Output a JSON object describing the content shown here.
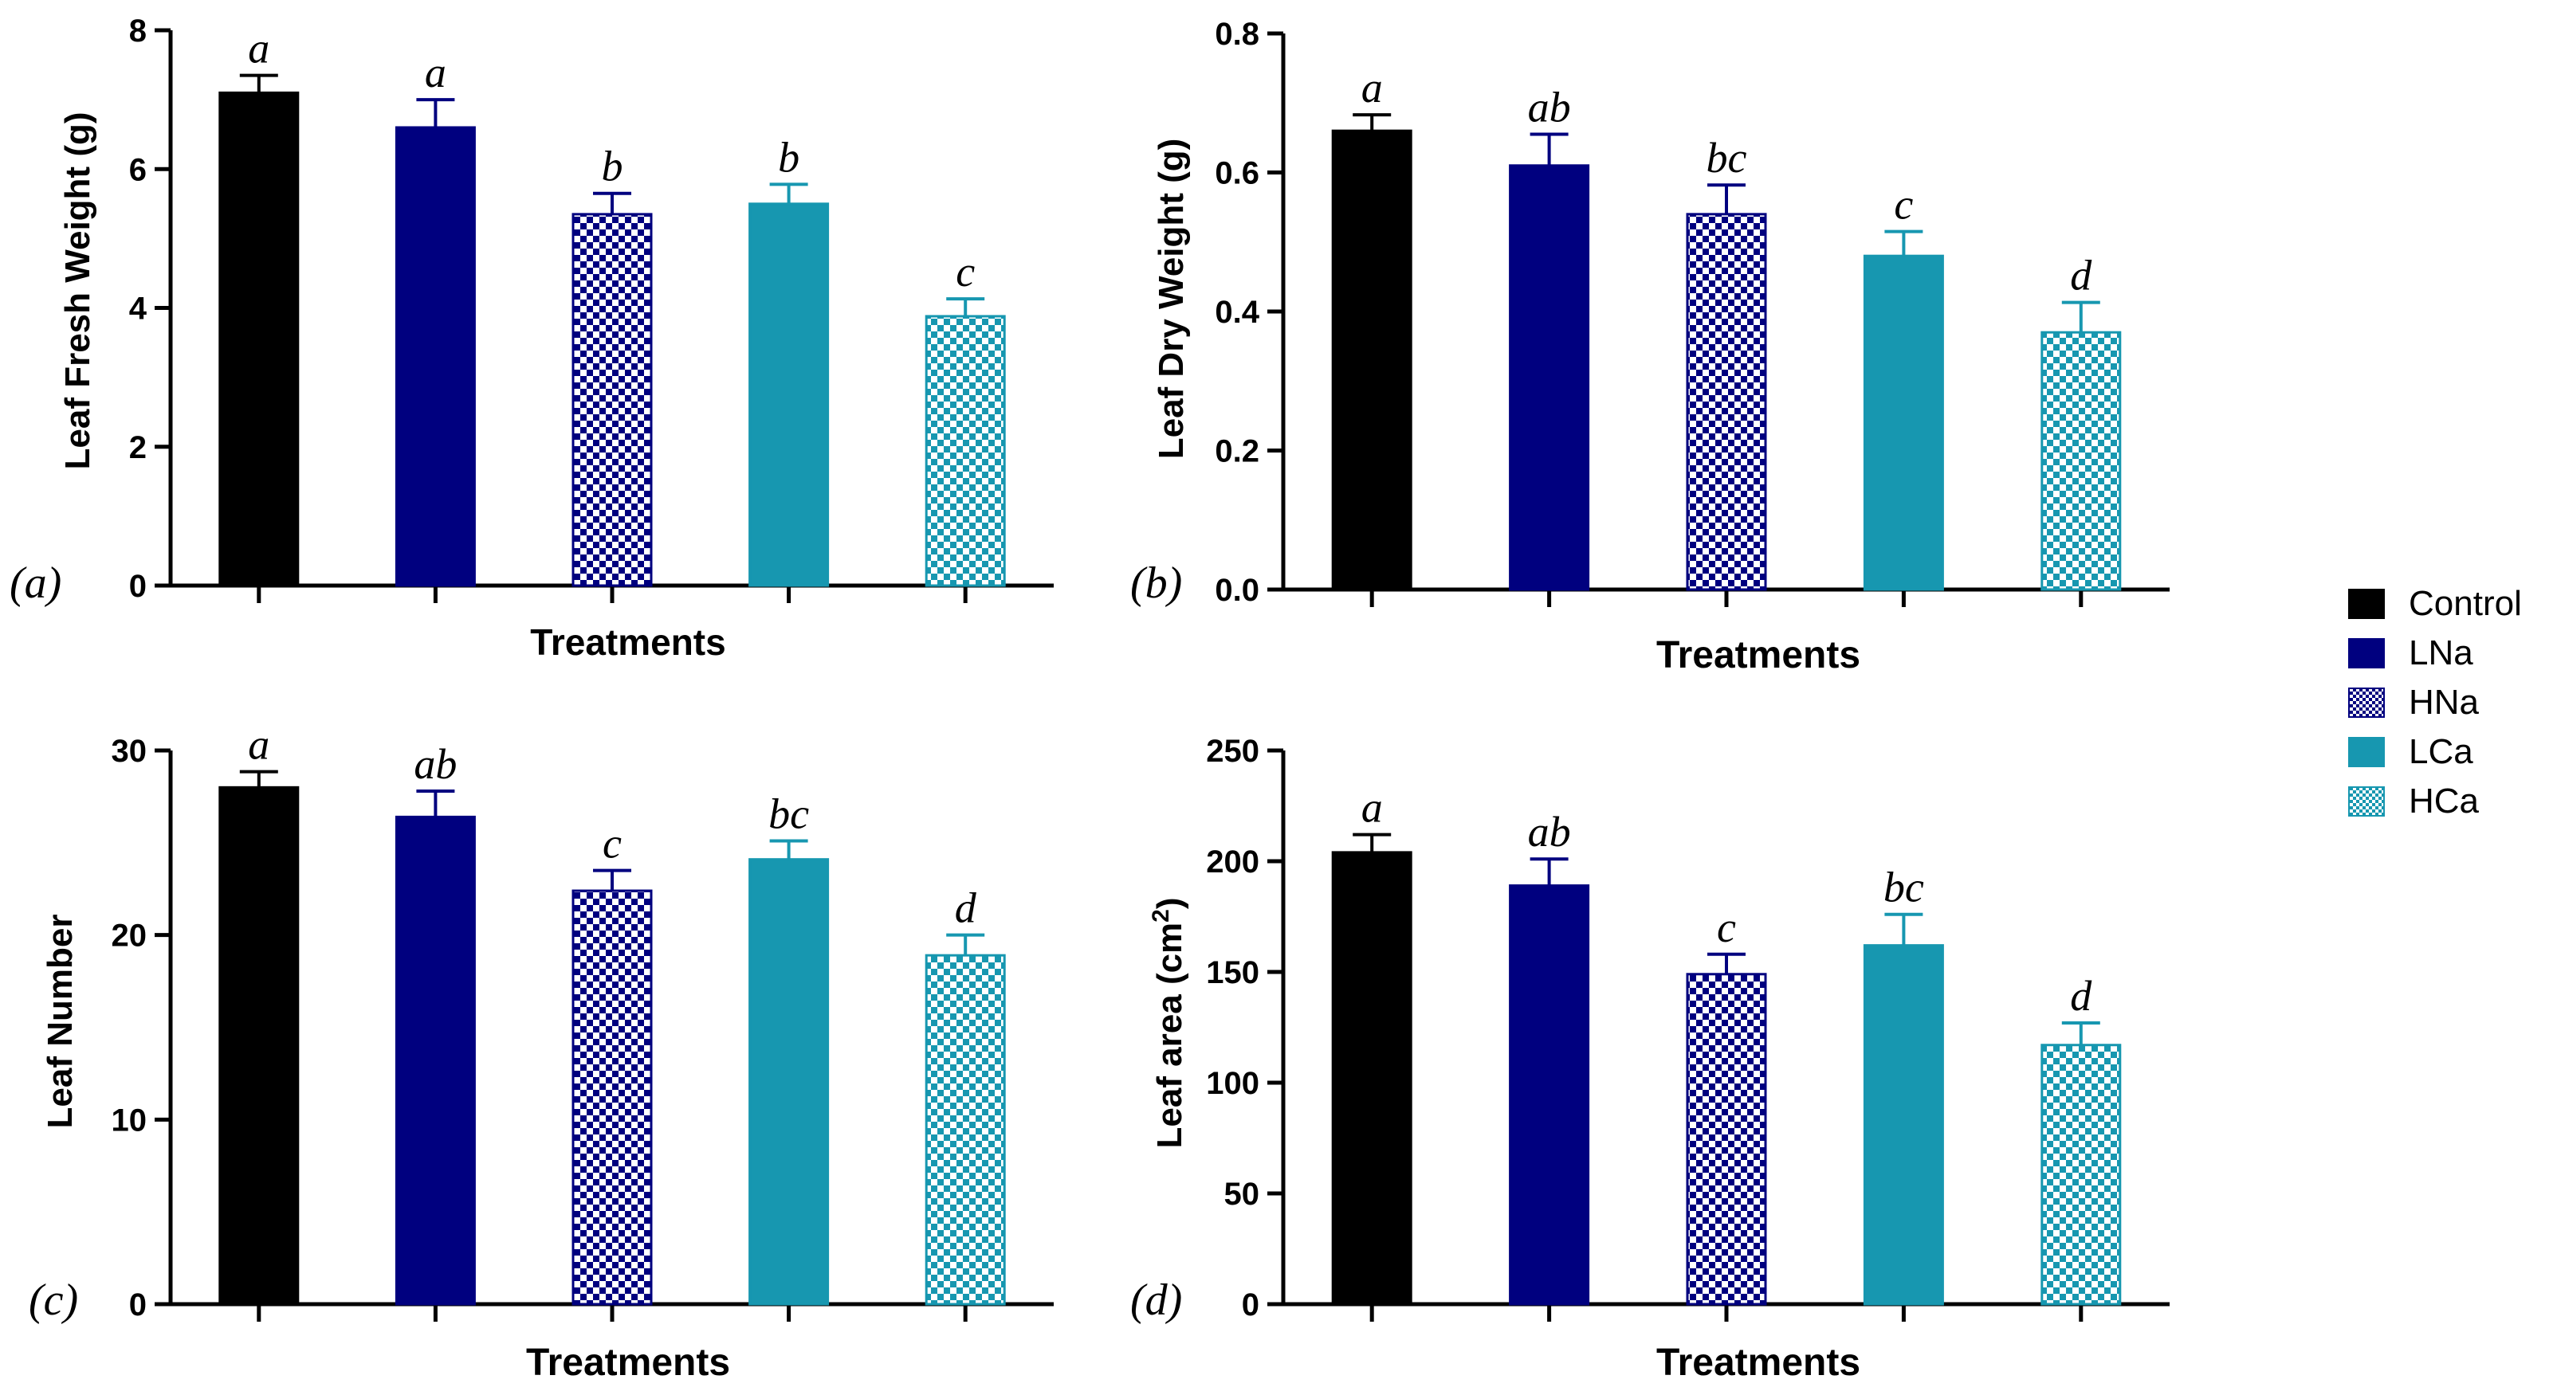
{
  "colors": {
    "Control": "#000000",
    "LNa": "#00007f",
    "HNa": "#00007f",
    "LCa": "#1797b0",
    "HCa": "#1797b0"
  },
  "legend": {
    "entries": [
      {
        "label": "Control",
        "fill": "solid",
        "color": "#000000"
      },
      {
        "label": "LNa",
        "fill": "solid",
        "color": "#00007f"
      },
      {
        "label": "HNa",
        "fill": "checker",
        "color": "#00007f"
      },
      {
        "label": "LCa",
        "fill": "solid",
        "color": "#1797b0"
      },
      {
        "label": "HCa",
        "fill": "checker",
        "color": "#1797b0"
      }
    ]
  },
  "chart_data": [
    {
      "type": "bar",
      "panel": "(a)",
      "title": "",
      "xlabel": "Treatments",
      "ylabel": "Leaf Fresh Weight (g)",
      "ylim": [
        0,
        8
      ],
      "yticks": [
        0,
        2,
        4,
        6,
        8
      ],
      "ytick_labels": [
        "0",
        "2",
        "4",
        "6",
        "8"
      ],
      "categories": [
        "Control",
        "LNa",
        "HNa",
        "LCa",
        "HCa"
      ],
      "values": [
        7.1,
        6.6,
        5.35,
        5.5,
        3.88
      ],
      "errors": [
        0.25,
        0.4,
        0.3,
        0.28,
        0.25
      ],
      "letters": [
        "a",
        "a",
        "b",
        "b",
        "c"
      ]
    },
    {
      "type": "bar",
      "panel": "(b)",
      "title": "",
      "xlabel": "Treatments",
      "ylabel": "Leaf Dry Weight (g)",
      "ylim": [
        0,
        0.8
      ],
      "yticks": [
        0,
        0.2,
        0.4,
        0.6,
        0.8
      ],
      "ytick_labels": [
        "0.0",
        "0.2",
        "0.4",
        "0.6",
        "0.8"
      ],
      "categories": [
        "Control",
        "LNa",
        "HNa",
        "LCa",
        "HCa"
      ],
      "values": [
        0.66,
        0.61,
        0.54,
        0.48,
        0.37
      ],
      "errors": [
        0.023,
        0.045,
        0.042,
        0.035,
        0.043
      ],
      "letters": [
        "a",
        "ab",
        "bc",
        "c",
        "d"
      ]
    },
    {
      "type": "bar",
      "panel": "(c)",
      "title": "",
      "xlabel": "Treatments",
      "ylabel": "Leaf Number",
      "ylim": [
        0,
        30
      ],
      "yticks": [
        0,
        10,
        20,
        30
      ],
      "ytick_labels": [
        "0",
        "10",
        "20",
        "30"
      ],
      "categories": [
        "Control",
        "LNa",
        "HNa",
        "LCa",
        "HCa"
      ],
      "values": [
        28,
        26.4,
        22.4,
        24.1,
        18.9
      ],
      "errors": [
        0.85,
        1.4,
        1.1,
        1.0,
        1.1
      ],
      "letters": [
        "a",
        "ab",
        "c",
        "bc",
        "d"
      ]
    },
    {
      "type": "bar",
      "panel": "(d)",
      "title": "",
      "xlabel": "Treatments",
      "ylabel": "Leaf area (cm",
      "ylabel_sup": "2",
      "ylabel_tail": ")",
      "ylim": [
        0,
        250
      ],
      "yticks": [
        0,
        50,
        100,
        150,
        200,
        250
      ],
      "ytick_labels": [
        "0",
        "50",
        "100",
        "150",
        "200",
        "250"
      ],
      "categories": [
        "Control",
        "LNa",
        "HNa",
        "LCa",
        "HCa"
      ],
      "values": [
        204,
        189,
        149,
        162,
        117
      ],
      "errors": [
        8,
        12,
        9,
        14,
        10
      ],
      "letters": [
        "a",
        "ab",
        "c",
        "bc",
        "d"
      ]
    }
  ]
}
